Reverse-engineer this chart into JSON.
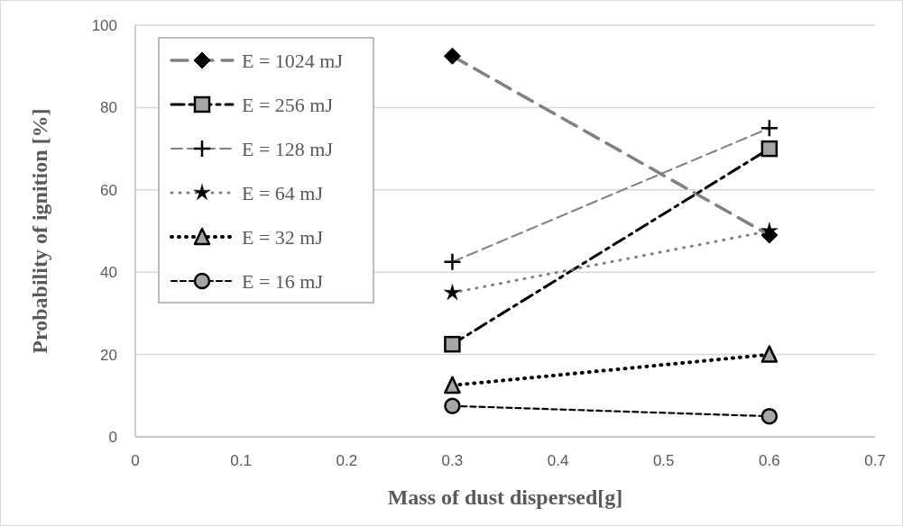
{
  "chart_data": {
    "type": "line",
    "xlabel": "Mass of dust dispersed[g]",
    "ylabel": "Probability of ignition [%]",
    "x": [
      0.3,
      0.6
    ],
    "series": [
      {
        "name": "E = 1024 mJ",
        "color": "#808080",
        "values": [
          92.5,
          49
        ],
        "marker": "diamond",
        "line_style": "dashed"
      },
      {
        "name": "E = 256 mJ",
        "color": "#000000",
        "values": [
          22.5,
          70
        ],
        "marker": "square",
        "line_style": "dashed"
      },
      {
        "name": "E = 128 mJ",
        "color": "#808080",
        "values": [
          42.5,
          75
        ],
        "marker": "cross",
        "line_style": "dashed"
      },
      {
        "name": "E = 64 mJ",
        "color": "#808080",
        "values": [
          35,
          50
        ],
        "marker": "star",
        "line_style": "dotted"
      },
      {
        "name": "E = 32 mJ",
        "color": "#000000",
        "values": [
          12.5,
          20
        ],
        "marker": "triangle",
        "line_style": "dotted"
      },
      {
        "name": "E = 16 mJ",
        "color": "#000000",
        "values": [
          7.5,
          5
        ],
        "marker": "circle",
        "line_style": "dashed"
      }
    ],
    "xlim": [
      0,
      0.7
    ],
    "xticks": [
      0,
      0.1,
      0.2,
      0.3,
      0.4,
      0.5,
      0.6,
      0.7
    ],
    "ylim": [
      0,
      100
    ],
    "yticks": [
      0,
      20,
      40,
      60,
      80,
      100
    ],
    "grid": "y",
    "legend": "top left"
  }
}
